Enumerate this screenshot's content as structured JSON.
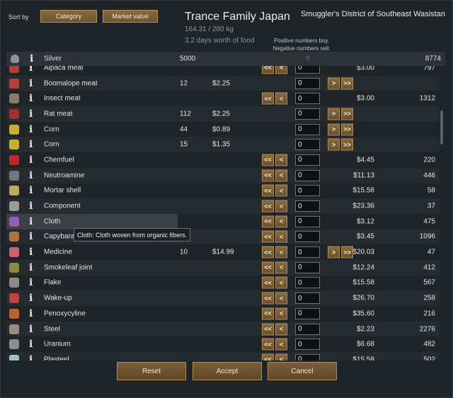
{
  "header": {
    "sort_by_label": "Sort by",
    "sort_category_label": "Category",
    "sort_market_value_label": "Market value",
    "trader_name": "Trance Family Japan",
    "mass": "164.31 / 280 kg",
    "food": "3.2 days worth of food",
    "location": "Smuggler's District of Southeast Wasistan",
    "hint_line1": "Positive numbers buy.",
    "hint_line2": "Negative numbers sell."
  },
  "silver": {
    "name": "Silver",
    "have": "5000",
    "qty": "0",
    "trader_count": "8774",
    "icon": "silver-icon"
  },
  "rows": [
    {
      "name": "Alpaca meat",
      "have": "",
      "price_l": "",
      "price_r": "$3.00",
      "count": "797",
      "left_btns": true,
      "right_btns": false,
      "qty": "0",
      "icon": "meat-icon",
      "icon_color": "#b3403a"
    },
    {
      "name": "Boomalope meat",
      "have": "12",
      "price_l": "$2.25",
      "price_r": "",
      "count": "",
      "left_btns": false,
      "right_btns": true,
      "qty": "0",
      "icon": "meat-icon",
      "icon_color": "#b3403a"
    },
    {
      "name": "Insect meat",
      "have": "",
      "price_l": "",
      "price_r": "$3.00",
      "count": "1312",
      "left_btns": true,
      "right_btns": false,
      "qty": "0",
      "icon": "insect-meat-icon",
      "icon_color": "#8a7868"
    },
    {
      "name": "Rat meat",
      "have": "112",
      "price_l": "$2.25",
      "price_r": "",
      "count": "",
      "left_btns": false,
      "right_btns": true,
      "qty": "0",
      "icon": "meat-icon",
      "icon_color": "#a03030"
    },
    {
      "name": "Corn",
      "have": "44",
      "price_l": "$0.89",
      "price_r": "",
      "count": "",
      "left_btns": false,
      "right_btns": true,
      "qty": "0",
      "icon": "corn-icon",
      "icon_color": "#c8b030"
    },
    {
      "name": "Corn",
      "have": "15",
      "price_l": "$1.35",
      "price_r": "",
      "count": "",
      "left_btns": false,
      "right_btns": true,
      "qty": "0",
      "icon": "corn-icon",
      "icon_color": "#c8b030"
    },
    {
      "name": "Chemfuel",
      "have": "",
      "price_l": "",
      "price_r": "$4.45",
      "count": "220",
      "left_btns": true,
      "right_btns": false,
      "qty": "0",
      "icon": "chemfuel-icon",
      "icon_color": "#c02828"
    },
    {
      "name": "Neutroamine",
      "have": "",
      "price_l": "",
      "price_r": "$11.13",
      "count": "446",
      "left_btns": true,
      "right_btns": false,
      "qty": "0",
      "icon": "neutroamine-icon",
      "icon_color": "#707880"
    },
    {
      "name": "Mortar shell",
      "have": "",
      "price_l": "",
      "price_r": "$15.58",
      "count": "58",
      "left_btns": true,
      "right_btns": false,
      "qty": "0",
      "icon": "shell-icon",
      "icon_color": "#c0a860"
    },
    {
      "name": "Component",
      "have": "",
      "price_l": "",
      "price_r": "$23.36",
      "count": "37",
      "left_btns": true,
      "right_btns": false,
      "qty": "0",
      "icon": "component-icon",
      "icon_color": "#9a9a9a"
    },
    {
      "name": "Cloth",
      "have": "",
      "price_l": "",
      "price_r": "$3.12",
      "count": "475",
      "left_btns": true,
      "right_btns": false,
      "qty": "0",
      "icon": "cloth-icon",
      "icon_color": "#9a5ab8",
      "highlight": true
    },
    {
      "name": "Capybaras",
      "have": "",
      "price_l": "",
      "price_r": "$3.45",
      "count": "1096",
      "left_btns": true,
      "right_btns": false,
      "qty": "0",
      "icon": "leather-icon",
      "icon_color": "#b07040"
    },
    {
      "name": "Medicine",
      "have": "10",
      "price_l": "$14.99",
      "price_r": "$20.03",
      "count": "47",
      "left_btns": true,
      "right_btns": true,
      "qty": "0",
      "icon": "medicine-icon",
      "icon_color": "#d06070"
    },
    {
      "name": "Smokeleaf joint",
      "have": "",
      "price_l": "",
      "price_r": "$12.24",
      "count": "412",
      "left_btns": true,
      "right_btns": false,
      "qty": "0",
      "icon": "joint-icon",
      "icon_color": "#8a8a40"
    },
    {
      "name": "Flake",
      "have": "",
      "price_l": "",
      "price_r": "$15.58",
      "count": "567",
      "left_btns": true,
      "right_btns": false,
      "qty": "0",
      "icon": "flake-icon",
      "icon_color": "#8a8a8a"
    },
    {
      "name": "Wake-up",
      "have": "",
      "price_l": "",
      "price_r": "$26.70",
      "count": "258",
      "left_btns": true,
      "right_btns": false,
      "qty": "0",
      "icon": "wakeup-icon",
      "icon_color": "#c04040"
    },
    {
      "name": "Penoxycyline",
      "have": "",
      "price_l": "",
      "price_r": "$35.60",
      "count": "216",
      "left_btns": true,
      "right_btns": false,
      "qty": "0",
      "icon": "pill-icon",
      "icon_color": "#c06030"
    },
    {
      "name": "Steel",
      "have": "",
      "price_l": "",
      "price_r": "$2.23",
      "count": "2276",
      "left_btns": true,
      "right_btns": false,
      "qty": "0",
      "icon": "steel-icon",
      "icon_color": "#9a8a80"
    },
    {
      "name": "Uranium",
      "have": "",
      "price_l": "",
      "price_r": "$6.68",
      "count": "482",
      "left_btns": true,
      "right_btns": false,
      "qty": "0",
      "icon": "uranium-icon",
      "icon_color": "#8a8e92"
    },
    {
      "name": "Plasteel",
      "have": "",
      "price_l": "",
      "price_r": "$15.58",
      "count": "502",
      "left_btns": true,
      "right_btns": false,
      "qty": "0",
      "icon": "plasteel-icon",
      "icon_color": "#a0c0c8"
    }
  ],
  "tooltip": "Cloth: Cloth woven from organic fibers.",
  "buttons": {
    "reset": "Reset",
    "accept": "Accept",
    "cancel": "Cancel",
    "buy_one": ">",
    "buy_all": ">>",
    "sell_one": "<",
    "sell_all": "<<"
  },
  "info_glyph": "i"
}
